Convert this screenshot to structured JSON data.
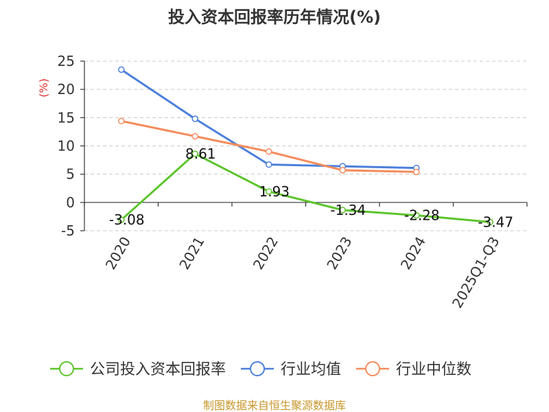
{
  "chart_data": {
    "type": "line",
    "title": "投入资本回报率历年情况(%)",
    "ylabel": "(%)",
    "xlabel": "",
    "categories": [
      "2020",
      "2021",
      "2022",
      "2023",
      "2024",
      "2025Q1-Q3"
    ],
    "ylim": [
      -5,
      25
    ],
    "yticks": [
      -5,
      0,
      5,
      10,
      15,
      20,
      25
    ],
    "grid": true,
    "legend_position": "bottom",
    "series": [
      {
        "name": "公司投入资本回报率",
        "color": "#5cc42c",
        "values": [
          -3.08,
          8.61,
          1.93,
          -1.34,
          -2.28,
          -3.47
        ],
        "labels": [
          "-3.08",
          "8.61",
          "1.93",
          "-1.34",
          "-2.28",
          "-3.47"
        ],
        "show_labels": true
      },
      {
        "name": "行业均值",
        "color": "#4c7fdc",
        "values": [
          23.5,
          14.8,
          6.7,
          6.4,
          6.1,
          null
        ],
        "show_labels": false
      },
      {
        "name": "行业中位数",
        "color": "#f48c5c",
        "values": [
          14.4,
          11.7,
          9.0,
          5.7,
          5.4,
          null
        ],
        "show_labels": false
      }
    ]
  },
  "source": "制图数据来自恒生聚源数据库"
}
